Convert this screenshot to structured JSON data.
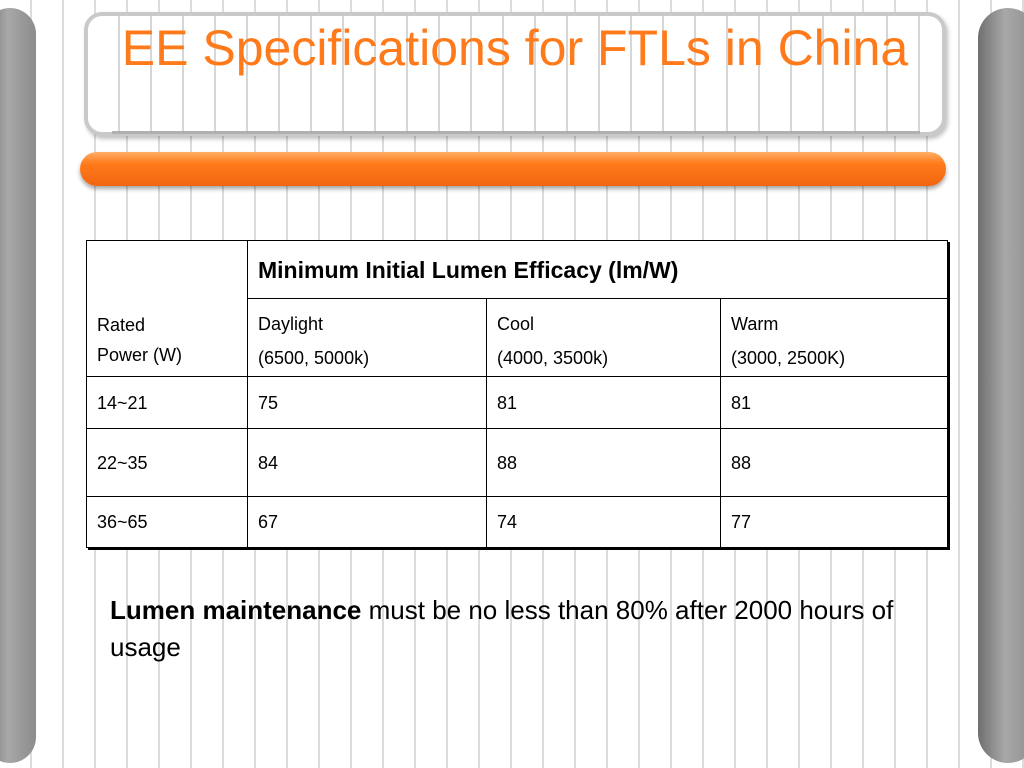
{
  "slide": {
    "title": "EE Specifications for FTLs in China"
  },
  "table": {
    "header_main": "Minimum Initial Lumen Efficacy (lm/W)",
    "rated_line1": "Rated",
    "rated_line2": "Power (W)",
    "columns": [
      {
        "name": "Daylight",
        "range": "(6500, 5000k)"
      },
      {
        "name": "Cool",
        "range": "(4000, 3500k)"
      },
      {
        "name": "Warm",
        "range": "(3000, 2500K)"
      }
    ],
    "rows": [
      {
        "power": "14~21",
        "values": [
          "75",
          "81",
          "81"
        ]
      },
      {
        "power": "22~35",
        "values": [
          "84",
          "88",
          "88"
        ]
      },
      {
        "power": "36~65",
        "values": [
          "67",
          "74",
          "77"
        ]
      }
    ]
  },
  "note": {
    "bold": "Lumen maintenance",
    "rest": " must be no less than 80% after 2000 hours of usage"
  }
}
